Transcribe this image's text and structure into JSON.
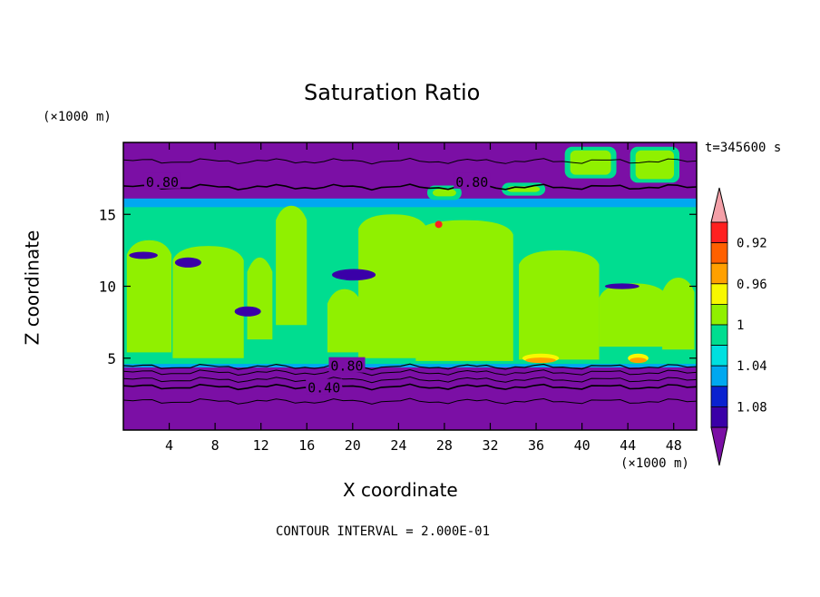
{
  "chart_data": {
    "type": "heatmap",
    "title": "Saturation Ratio",
    "xlabel": "X coordinate",
    "ylabel": "Z coordinate",
    "x_unit": "(×1000 m)",
    "y_unit": "(×1000 m)",
    "time_label": "t=345600 s",
    "footer": "CONTOUR INTERVAL = 2.000E-01",
    "xlim": [
      0,
      50
    ],
    "ylim": [
      0,
      20
    ],
    "x_ticks": [
      4,
      8,
      12,
      16,
      20,
      24,
      28,
      32,
      36,
      40,
      44,
      48
    ],
    "y_ticks": [
      5,
      10,
      15
    ],
    "colorbar": {
      "labels": [
        "0.92",
        "0.96",
        "1",
        "1.04",
        "1.08"
      ],
      "levels": [
        0.92,
        0.94,
        0.96,
        0.98,
        1.0,
        1.02,
        1.04,
        1.06,
        1.08
      ],
      "colors": [
        "#7b0fa5",
        "#3a00a8",
        "#0a22d0",
        "#00a8f0",
        "#00e0e0",
        "#00dd90",
        "#90f000",
        "#f8f800",
        "#ffa000",
        "#ff6000",
        "#ff2020",
        "#f4a0a8"
      ]
    },
    "contour_labels": [
      {
        "text": "0.80",
        "x": 3.4,
        "z": 17.3
      },
      {
        "text": "0.80",
        "x": 30.4,
        "z": 17.3
      },
      {
        "text": "0.80",
        "x": 19.5,
        "z": 4.5
      },
      {
        "text": "0.40",
        "x": 17.5,
        "z": 3.0
      }
    ],
    "regions": {
      "dry_layer_below_km": 4.6,
      "moist_layer_km": [
        4.6,
        15.5
      ],
      "dry_layer_above_km": 15.5
    }
  }
}
